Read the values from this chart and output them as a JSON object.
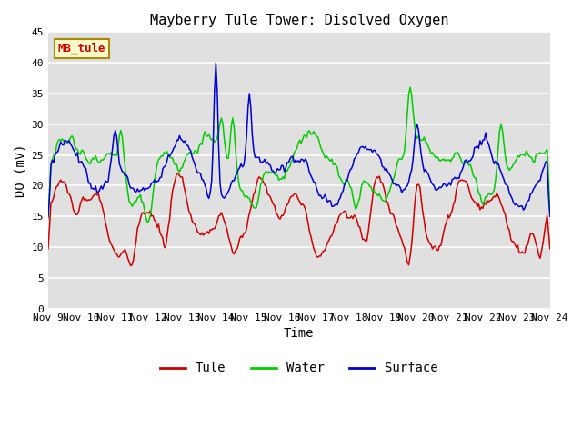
{
  "title": "Mayberry Tule Tower: Disolved Oxygen",
  "ylabel": "DO (mV)",
  "xlabel": "Time",
  "ylim": [
    0,
    45
  ],
  "yticks": [
    0,
    5,
    10,
    15,
    20,
    25,
    30,
    35,
    40,
    45
  ],
  "xtick_labels": [
    "Nov 9",
    "Nov 10",
    "Nov 11",
    "Nov 12",
    "Nov 13",
    "Nov 14",
    "Nov 15",
    "Nov 16",
    "Nov 17",
    "Nov 18",
    "Nov 19",
    "Nov 20",
    "Nov 21",
    "Nov 22",
    "Nov 23",
    "Nov 24"
  ],
  "legend_box_label": "MB_tule",
  "legend_entries": [
    "Tule",
    "Water",
    "Surface"
  ],
  "colors": {
    "tule": "#cc0000",
    "water": "#00cc00",
    "surface": "#0000cc"
  },
  "bg_color": "#e0e0e0",
  "title_fontsize": 11,
  "axis_label_fontsize": 10,
  "n_points": 360
}
